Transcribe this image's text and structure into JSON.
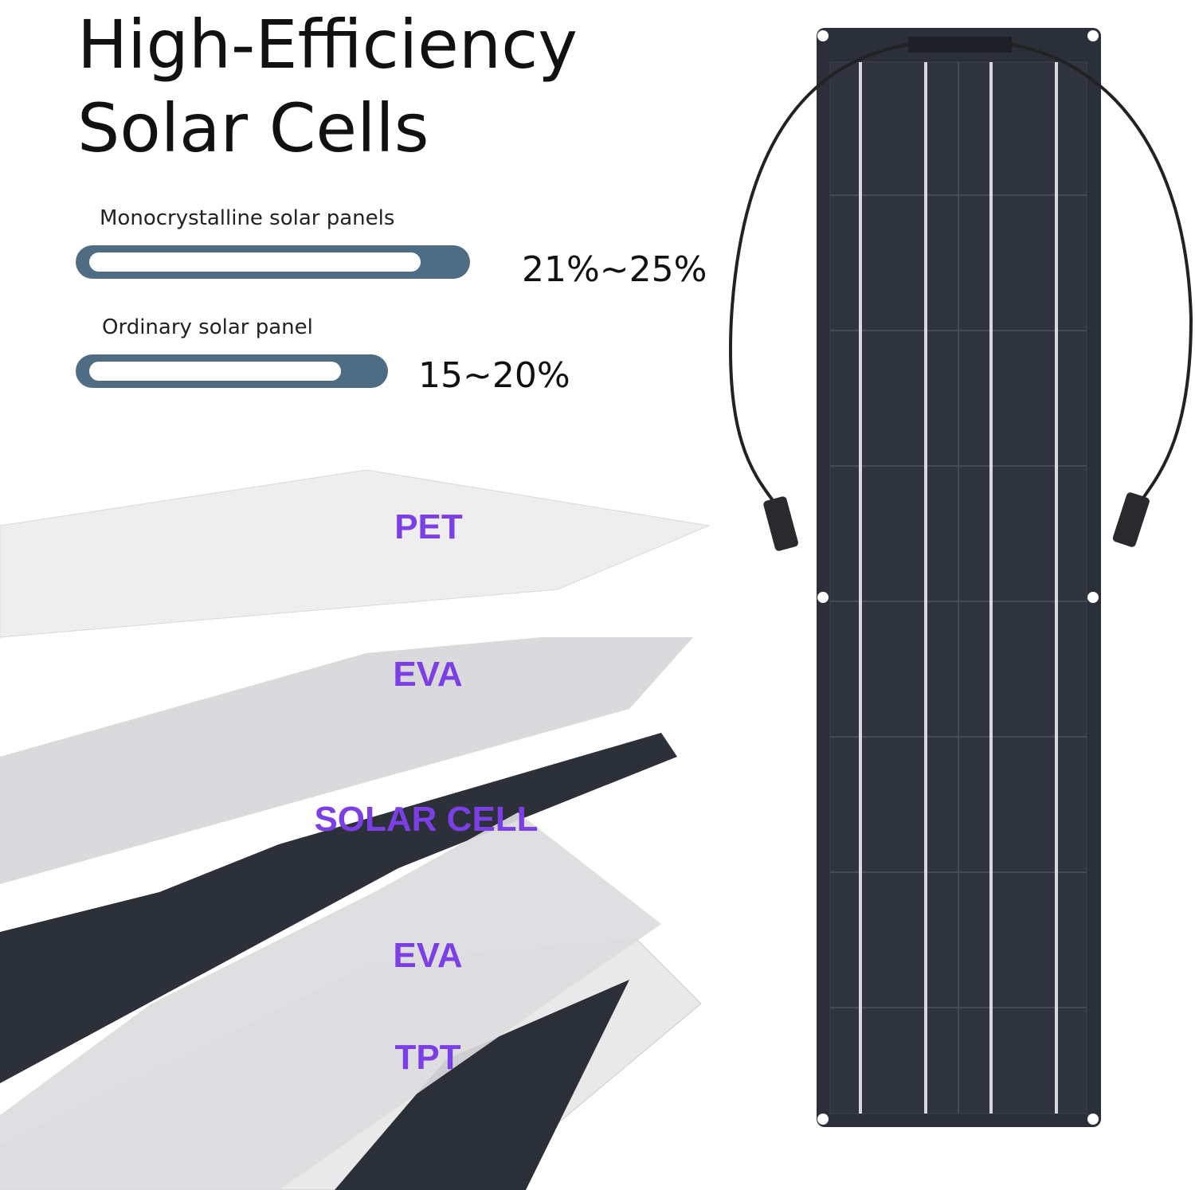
{
  "header": {
    "title_lines": [
      "High-Efficiency",
      "Solar Cells"
    ]
  },
  "comparison": [
    {
      "label": "Monocrystalline solar panels",
      "value": "21%~25%"
    },
    {
      "label": "Ordinary solar panel",
      "value": "15~20%"
    }
  ],
  "layers": [
    "PET",
    "EVA",
    "SOLAR CELL",
    "EVA",
    "TPT"
  ]
}
